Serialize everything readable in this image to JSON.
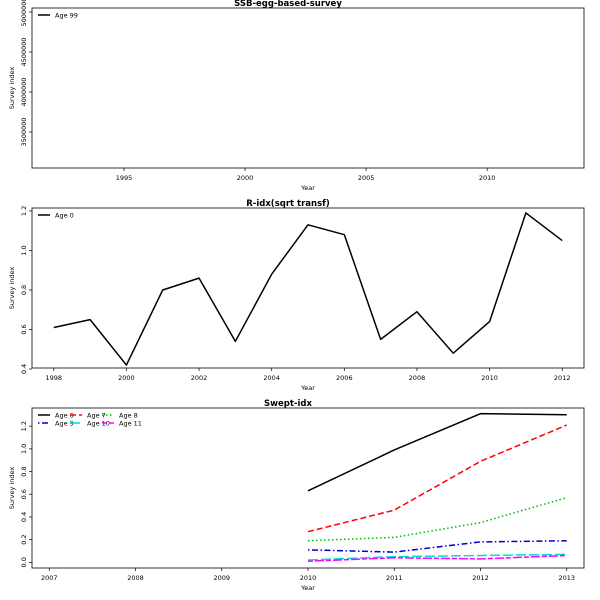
{
  "chart_data": [
    {
      "type": "line",
      "title": "SSB-egg-based-survey",
      "xlabel": "Year",
      "ylabel": "Survey index",
      "xlim": [
        1991.2,
        2014.0
      ],
      "ylim": [
        3050000,
        5050000
      ],
      "xticks": [
        1995,
        2000,
        2005,
        2010
      ],
      "yticks": [
        3500000,
        4000000,
        4500000,
        5000000
      ],
      "legend_position": "top-left",
      "legend_columns": 1,
      "series": [
        {
          "name": "Age 99",
          "color": "#000000",
          "dash": "solid",
          "x": [],
          "y": []
        }
      ]
    },
    {
      "type": "line",
      "title": "R-idx(sqrt transf)",
      "xlabel": "Year",
      "ylabel": "Survey index",
      "xlim": [
        1997.4,
        2012.6
      ],
      "ylim": [
        0.405,
        1.215
      ],
      "xticks": [
        1998,
        2000,
        2002,
        2004,
        2006,
        2008,
        2010,
        2012
      ],
      "yticks": [
        0.4,
        0.6,
        0.8,
        1.0,
        1.2
      ],
      "legend_position": "top-left",
      "legend_columns": 1,
      "series": [
        {
          "name": "Age 0",
          "color": "#000000",
          "dash": "solid",
          "x": [
            1998,
            1999,
            2000,
            2001,
            2002,
            2003,
            2004,
            2005,
            2006,
            2007,
            2008,
            2009,
            2010,
            2011,
            2012
          ],
          "y": [
            0.61,
            0.65,
            0.42,
            0.8,
            0.86,
            0.54,
            0.88,
            1.13,
            1.08,
            0.55,
            0.69,
            0.48,
            0.64,
            1.19,
            1.05
          ]
        }
      ]
    },
    {
      "type": "line",
      "title": "Swept-idx",
      "xlabel": "Year",
      "ylabel": "Survey index",
      "xlim": [
        2006.8,
        2013.2
      ],
      "ylim": [
        -0.05,
        1.36
      ],
      "xticks": [
        2007,
        2008,
        2009,
        2010,
        2011,
        2012,
        2013
      ],
      "yticks": [
        0.0,
        0.2,
        0.4,
        0.6,
        0.8,
        1.0,
        1.2
      ],
      "legend_position": "top-left",
      "legend_columns": 3,
      "series": [
        {
          "name": "Age 6",
          "color": "#000000",
          "dash": "solid",
          "x": [
            2010,
            2011,
            2012,
            2013
          ],
          "y": [
            0.63,
            0.99,
            1.31,
            1.3
          ]
        },
        {
          "name": "Age 7",
          "color": "#ff0000",
          "dash": "dashed",
          "x": [
            2010,
            2011,
            2012,
            2013
          ],
          "y": [
            0.27,
            0.46,
            0.89,
            1.21
          ]
        },
        {
          "name": "Age 8",
          "color": "#00bb00",
          "dash": "dotted",
          "x": [
            2010,
            2011,
            2012,
            2013
          ],
          "y": [
            0.19,
            0.22,
            0.35,
            0.57
          ]
        },
        {
          "name": "Age 9",
          "color": "#0000cc",
          "dash": "dotdash",
          "x": [
            2010,
            2011,
            2012,
            2013
          ],
          "y": [
            0.11,
            0.09,
            0.18,
            0.19
          ]
        },
        {
          "name": "Age 10",
          "color": "#00dddd",
          "dash": "longdash",
          "x": [
            2010,
            2011,
            2012,
            2013
          ],
          "y": [
            0.02,
            0.05,
            0.06,
            0.07
          ]
        },
        {
          "name": "Age 11",
          "color": "#ff00ff",
          "dash": "twodash",
          "x": [
            2010,
            2011,
            2012,
            2013
          ],
          "y": [
            0.01,
            0.04,
            0.03,
            0.06
          ]
        }
      ]
    }
  ]
}
